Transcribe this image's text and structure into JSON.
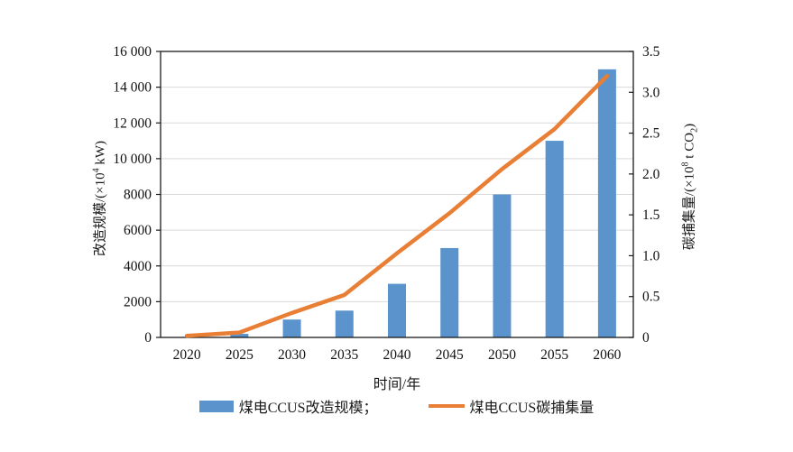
{
  "chart_data": {
    "type": "bar+line combo",
    "categories": [
      "2020",
      "2025",
      "2030",
      "2035",
      "2040",
      "2045",
      "2050",
      "2055",
      "2060"
    ],
    "series": [
      {
        "name": "煤电CCUS改造规模",
        "type": "bar",
        "axis": "left",
        "color": "#5B94CC",
        "values": [
          0,
          200,
          1000,
          1500,
          3000,
          5000,
          8000,
          11000,
          15000
        ]
      },
      {
        "name": "煤电CCUS碳捕集量",
        "type": "line",
        "axis": "right",
        "color": "#E97E35",
        "values": [
          0.02,
          0.06,
          0.3,
          0.52,
          1.03,
          1.52,
          2.06,
          2.55,
          3.2
        ]
      }
    ],
    "left_axis": {
      "min": 0,
      "max": 16000,
      "step": 2000,
      "tick_labels": [
        "0",
        "2000",
        "4000",
        "6000",
        "8000",
        "10 000",
        "12 000",
        "14 000",
        "16 000"
      ],
      "title_parts": [
        {
          "t": "改造规模/(×10"
        },
        {
          "t": "4",
          "sup": true
        },
        {
          "t": " kW)"
        }
      ]
    },
    "right_axis": {
      "min": 0,
      "max": 3.5,
      "step": 0.5,
      "tick_labels": [
        "0",
        "0.5",
        "1.0",
        "1.5",
        "2.0",
        "2.5",
        "3.0",
        "3.5"
      ],
      "title_parts": [
        {
          "t": "碳捕集量/(×10"
        },
        {
          "t": "8",
          "sup": true
        },
        {
          "t": " t CO"
        },
        {
          "t": "2",
          "sub": true
        },
        {
          "t": ")"
        }
      ]
    },
    "x_axis": {
      "label": "时间/年"
    },
    "legend": [
      {
        "label": "煤电CCUS改造规模；",
        "swatch": "bar",
        "color": "#5B94CC"
      },
      {
        "label": "煤电CCUS碳捕集量",
        "swatch": "line",
        "color": "#E97E35"
      }
    ],
    "grid": {
      "on": true,
      "color": "#D9D9D9"
    },
    "frame_color": "#1A1A1A",
    "legend_position": "bottom-center"
  }
}
